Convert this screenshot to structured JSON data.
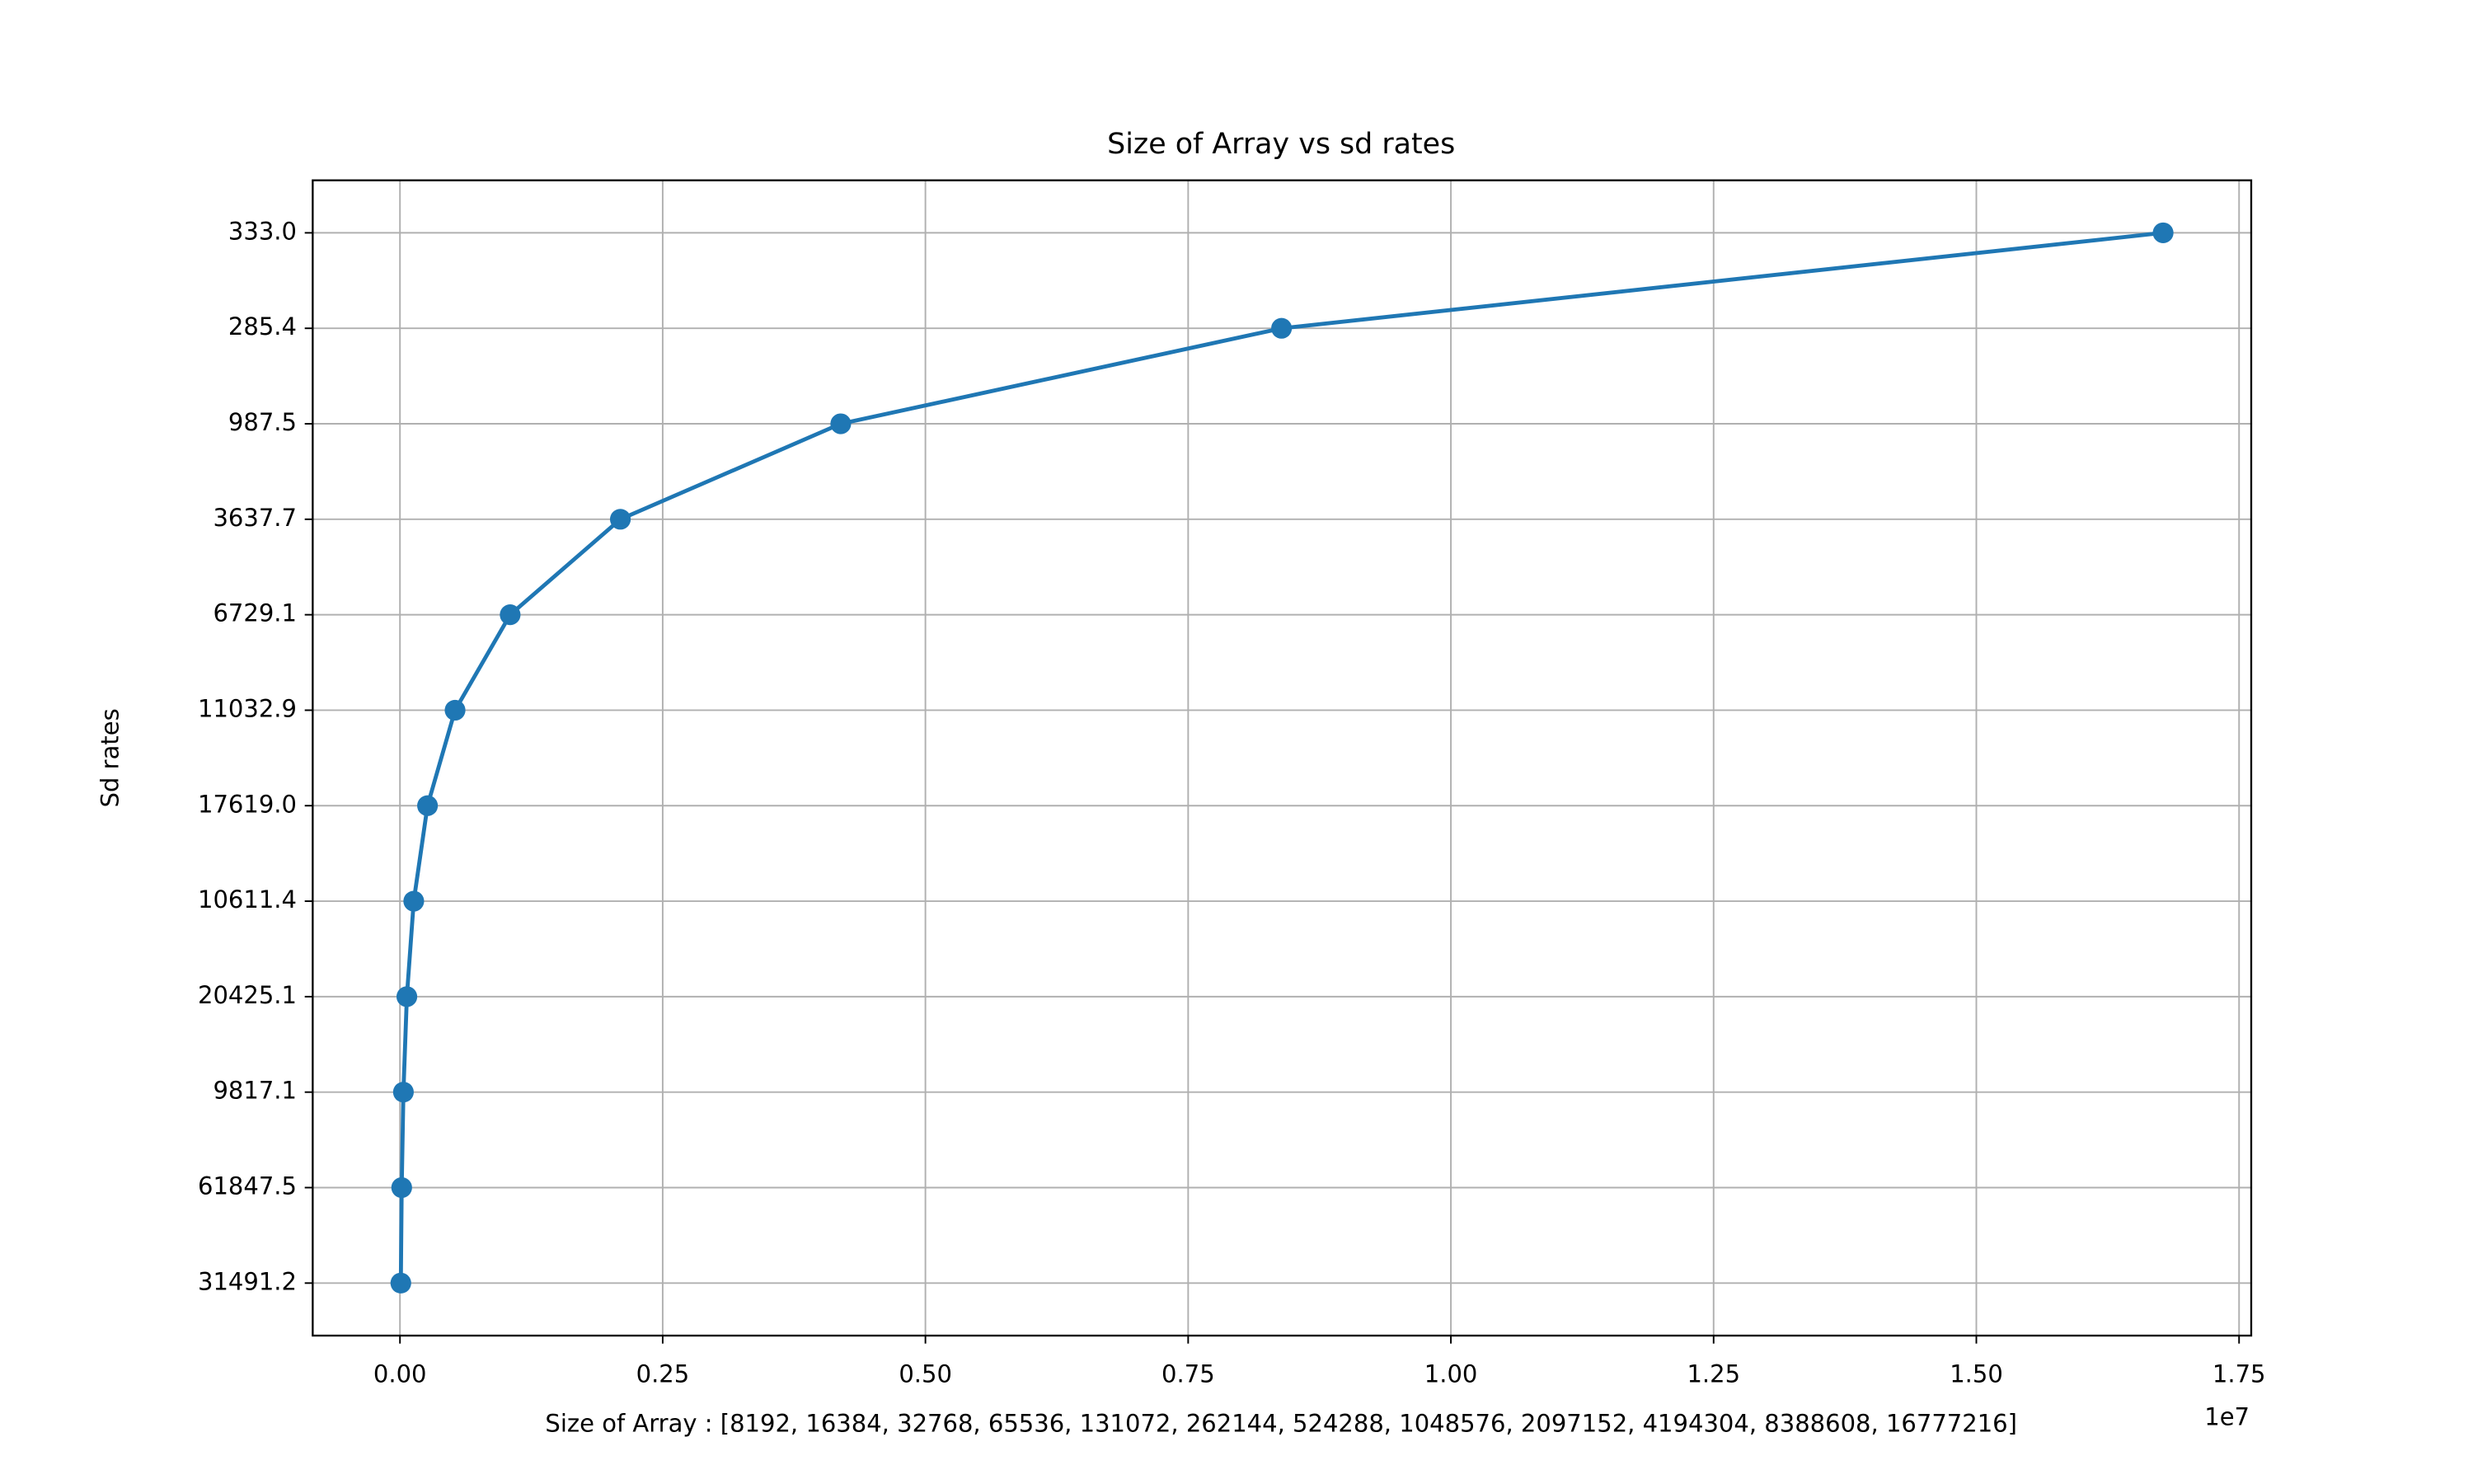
{
  "chart_data": {
    "type": "line",
    "title": "Size of Array vs sd rates",
    "xlabel": "Size of Array : [8192, 16384, 32768, 65536, 131072, 262144, 524288, 1048576, 2097152, 4194304, 8388608, 16777216]",
    "ylabel": "Sd rates",
    "x_offset_label": "1e7",
    "y_categories": [
      "31491.2",
      "61847.5",
      "9817.1",
      "20425.1",
      "10611.4",
      "17619.0",
      "11032.9",
      "6729.1",
      "3637.7",
      "987.5",
      "285.4",
      "333.0"
    ],
    "x": [
      8192,
      16384,
      32768,
      65536,
      131072,
      262144,
      524288,
      1048576,
      2097152,
      4194304,
      8388608,
      16777216
    ],
    "series": [
      {
        "color": "#1f77b4",
        "values": [
          "31491.2",
          "61847.5",
          "9817.1",
          "20425.1",
          "10611.4",
          "17619.0",
          "11032.9",
          "6729.1",
          "3637.7",
          "987.5",
          "285.4",
          "333.0"
        ]
      }
    ],
    "xlim": [
      -830259,
      17615667
    ],
    "xticks": [
      {
        "value": 0,
        "label": "0.00"
      },
      {
        "value": 2500000,
        "label": "0.25"
      },
      {
        "value": 5000000,
        "label": "0.50"
      },
      {
        "value": 7500000,
        "label": "0.75"
      },
      {
        "value": 10000000,
        "label": "1.00"
      },
      {
        "value": 12500000,
        "label": "1.25"
      },
      {
        "value": 15000000,
        "label": "1.50"
      },
      {
        "value": 17500000,
        "label": "1.75"
      }
    ],
    "grid": true
  }
}
